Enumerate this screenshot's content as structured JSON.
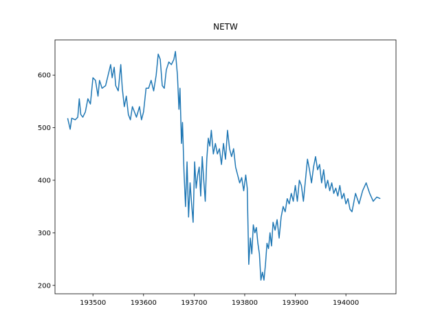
{
  "chart_data": {
    "type": "line",
    "title": "NETW",
    "x": [
      193450,
      193455,
      193458,
      193465,
      193470,
      193473,
      193476,
      193480,
      193485,
      193490,
      193495,
      193500,
      193505,
      193510,
      193513,
      193518,
      193525,
      193530,
      193535,
      193538,
      193542,
      193545,
      193550,
      193555,
      193558,
      193562,
      193566,
      193570,
      193574,
      193578,
      193582,
      193586,
      193592,
      193596,
      193600,
      193605,
      193610,
      193615,
      193620,
      193625,
      193629,
      193633,
      193637,
      193641,
      193645,
      193650,
      193655,
      193660,
      193663,
      193667,
      193670,
      193672,
      193675,
      193677,
      193680,
      193683,
      193686,
      193689,
      193692,
      193695,
      193698,
      193701,
      193704,
      193707,
      193710,
      193713,
      193716,
      193719,
      193722,
      193725,
      193728,
      193731,
      193734,
      193738,
      193742,
      193746,
      193750,
      193754,
      193758,
      193762,
      193766,
      193770,
      193774,
      193778,
      193782,
      193786,
      193790,
      193794,
      193798,
      193802,
      193805,
      193808,
      193811,
      193814,
      193817,
      193820,
      193823,
      193826,
      193829,
      193832,
      193835,
      193838,
      193841,
      193844,
      193847,
      193850,
      193853,
      193856,
      193860,
      193864,
      193868,
      193872,
      193876,
      193880,
      193884,
      193888,
      193892,
      193896,
      193900,
      193904,
      193908,
      193912,
      193916,
      193920,
      193924,
      193928,
      193932,
      193936,
      193940,
      193944,
      193948,
      193952,
      193956,
      193960,
      193964,
      193968,
      193972,
      193976,
      193980,
      193984,
      193988,
      193992,
      193996,
      194000,
      194004,
      194008,
      194012,
      194019,
      194026,
      194033,
      194040,
      194047,
      194054,
      194061,
      194068
    ],
    "series": [
      {
        "color": "#1f77b4",
        "values": [
          518,
          497,
          518,
          515,
          520,
          555,
          525,
          520,
          530,
          555,
          545,
          595,
          590,
          560,
          590,
          575,
          580,
          600,
          620,
          595,
          615,
          580,
          570,
          620,
          575,
          540,
          560,
          525,
          515,
          540,
          530,
          520,
          540,
          515,
          530,
          575,
          575,
          590,
          570,
          600,
          640,
          630,
          580,
          575,
          610,
          625,
          620,
          630,
          645,
          600,
          535,
          575,
          470,
          510,
          415,
          350,
          435,
          330,
          395,
          355,
          320,
          435,
          385,
          410,
          425,
          370,
          445,
          400,
          360,
          440,
          480,
          465,
          495,
          450,
          470,
          450,
          460,
          430,
          470,
          440,
          495,
          460,
          445,
          460,
          425,
          410,
          395,
          405,
          380,
          410,
          385,
          240,
          290,
          260,
          315,
          300,
          310,
          280,
          260,
          210,
          225,
          210,
          240,
          280,
          270,
          300,
          275,
          320,
          305,
          325,
          290,
          330,
          350,
          340,
          365,
          355,
          375,
          360,
          390,
          360,
          400,
          390,
          360,
          400,
          440,
          420,
          395,
          425,
          445,
          420,
          430,
          395,
          420,
          385,
          400,
          380,
          395,
          375,
          385,
          370,
          390,
          365,
          375,
          355,
          365,
          345,
          340,
          375,
          355,
          380,
          395,
          375,
          360,
          368,
          365
        ]
      }
    ],
    "xlim": [
      193425,
      194099
    ],
    "ylim": [
      184,
      667
    ],
    "xticks": [
      193500,
      193600,
      193700,
      193800,
      193900,
      194000
    ],
    "yticks": [
      200,
      300,
      400,
      500,
      600
    ]
  }
}
